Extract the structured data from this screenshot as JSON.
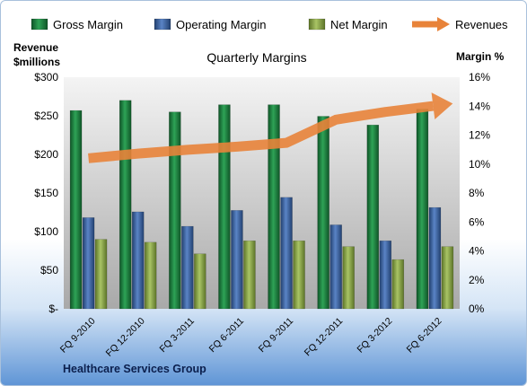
{
  "chart_data": {
    "type": "bar",
    "title": "Quarterly Margins",
    "footer": "Healthcare Services Group",
    "left_axis_title": [
      "Revenue",
      "$millions"
    ],
    "right_axis_title": "Margin %",
    "categories": [
      "FQ 9-2010",
      "FQ 12-2010",
      "FQ 3-2011",
      "FQ 6-2011",
      "FQ 9-2011",
      "FQ 12-2011",
      "FQ 3-2012",
      "FQ 6-2012"
    ],
    "left_ticks": [
      "$-",
      "$50",
      "$100",
      "$150",
      "$200",
      "$250",
      "$300"
    ],
    "right_ticks": [
      "0%",
      "2%",
      "4%",
      "6%",
      "8%",
      "10%",
      "12%",
      "14%",
      "16%"
    ],
    "ylim_left": [
      0,
      300
    ],
    "ylim_right": [
      0,
      16
    ],
    "series": [
      {
        "name": "Gross Margin",
        "axis": "right",
        "color": "#1e7a3c",
        "values": [
          13.7,
          14.4,
          13.6,
          14.1,
          14.1,
          13.3,
          12.7,
          13.8
        ]
      },
      {
        "name": "Operating Margin",
        "axis": "right",
        "color": "#3a5e9c",
        "values": [
          6.3,
          6.7,
          5.7,
          6.8,
          7.7,
          5.8,
          4.7,
          7.0
        ]
      },
      {
        "name": "Net Margin",
        "axis": "right",
        "color": "#8aa747",
        "values": [
          4.8,
          4.6,
          3.8,
          4.7,
          4.7,
          4.3,
          3.4,
          4.3
        ]
      },
      {
        "name": "Revenues",
        "axis": "left",
        "type": "line",
        "color": "#e8833a",
        "values": [
          195,
          201,
          206,
          210,
          215,
          245,
          255,
          263
        ]
      }
    ],
    "legend_position": "top",
    "grid": false
  }
}
